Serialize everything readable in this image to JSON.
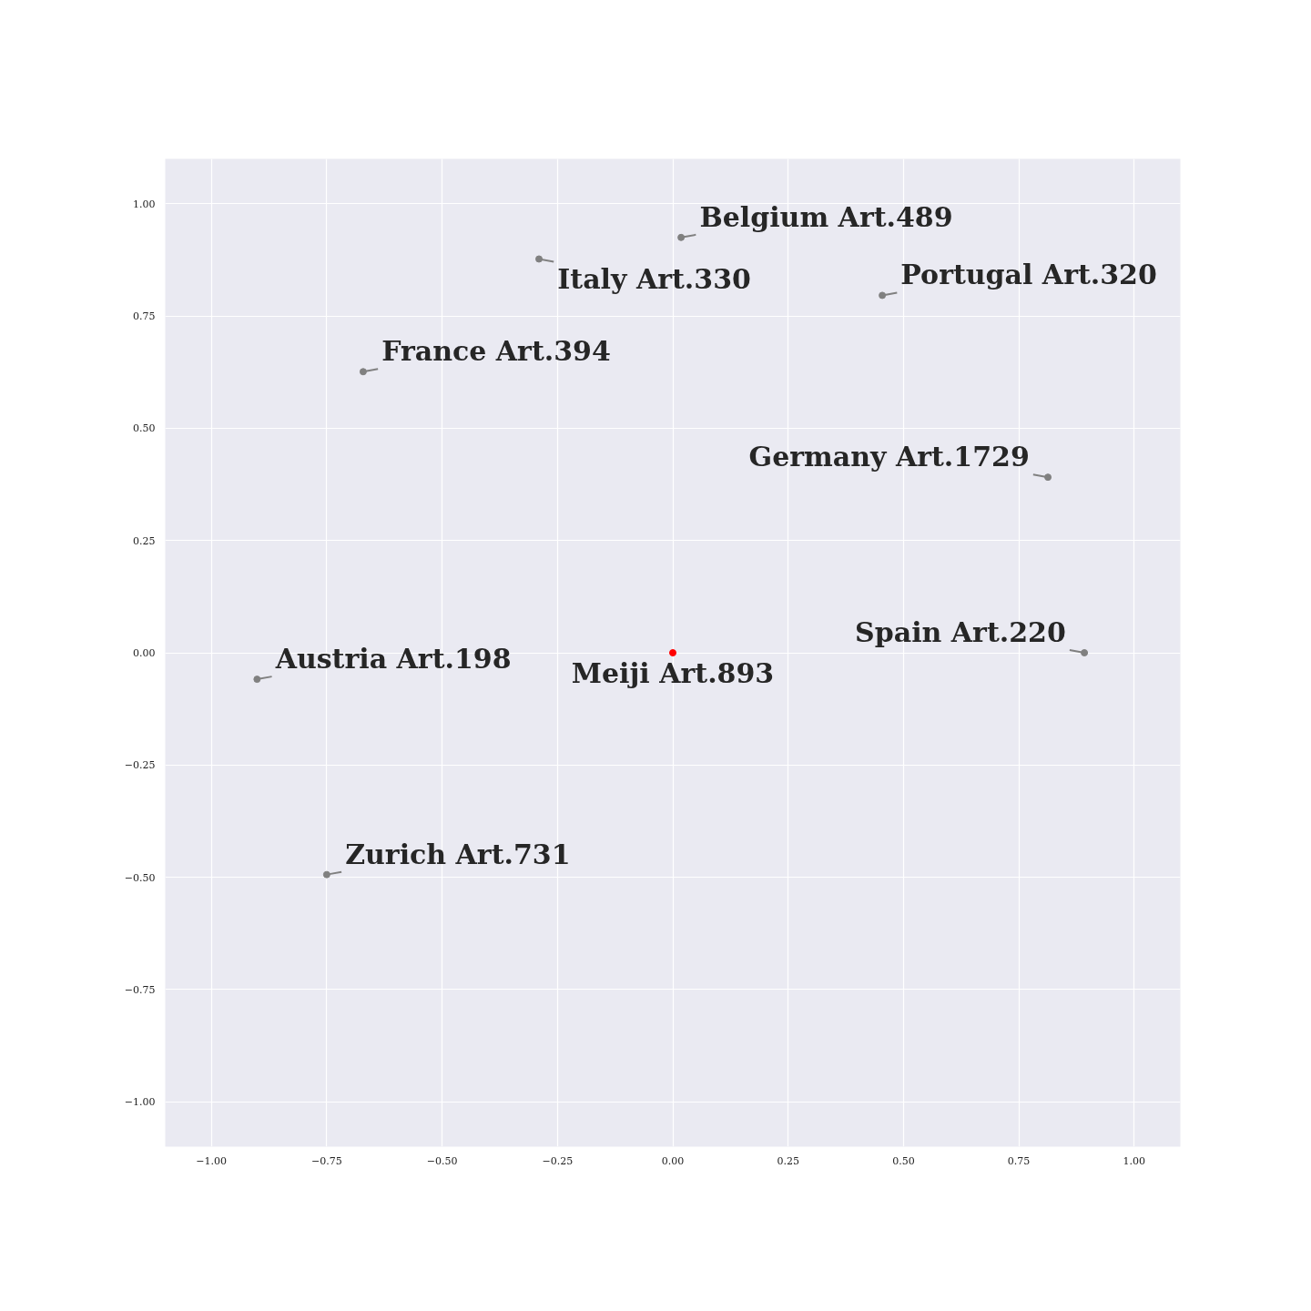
{
  "chart_data": {
    "type": "scatter",
    "grid": true,
    "marker": "circle",
    "xlim": [
      -1.1,
      1.1
    ],
    "ylim": [
      -1.1,
      1.1
    ],
    "xticks": [
      {
        "value": -1,
        "label": "−1.00"
      },
      {
        "value": -0.75,
        "label": "−0.75"
      },
      {
        "value": -0.5,
        "label": "−0.50"
      },
      {
        "value": -0.25,
        "label": "−0.25"
      },
      {
        "value": 0,
        "label": "0.00"
      },
      {
        "value": 0.25,
        "label": "0.25"
      },
      {
        "value": 0.5,
        "label": "0.50"
      },
      {
        "value": 0.75,
        "label": "0.75"
      },
      {
        "value": 1,
        "label": "1.00"
      }
    ],
    "yticks": [
      {
        "value": -1,
        "label": "−1.00"
      },
      {
        "value": -0.75,
        "label": "−0.75"
      },
      {
        "value": -0.5,
        "label": "−0.50"
      },
      {
        "value": -0.25,
        "label": "−0.25"
      },
      {
        "value": 0,
        "label": "0.00"
      },
      {
        "value": 0.25,
        "label": "0.25"
      },
      {
        "value": 0.5,
        "label": "0.50"
      },
      {
        "value": 0.75,
        "label": "0.75"
      },
      {
        "value": 1,
        "label": "1.00"
      }
    ],
    "series": [
      {
        "color": "#808080",
        "x": [
          0.018,
          -0.29,
          0.454,
          -0.671,
          0.813,
          0.892,
          -0.901,
          -0.75
        ],
        "values": [
          0.925,
          0.877,
          0.796,
          0.626,
          0.391,
          0,
          -0.059,
          -0.494
        ]
      },
      {
        "color": "#ff0000",
        "x": [
          0
        ],
        "values": [
          0
        ]
      }
    ],
    "annotations": [
      {
        "text": "Belgium Art.489",
        "x": 0.018,
        "y": 0.925
      },
      {
        "text": "Italy Art.330",
        "x": -0.29,
        "y": 0.877
      },
      {
        "text": "Portugal Art.320",
        "x": 0.454,
        "y": 0.796
      },
      {
        "text": "France Art.394",
        "x": -0.671,
        "y": 0.626
      },
      {
        "text": "Germany Art.1729",
        "x": 0.813,
        "y": 0.391
      },
      {
        "text": "Spain Art.220",
        "x": 0.892,
        "y": 0
      },
      {
        "text": "Austria Art.198",
        "x": -0.901,
        "y": -0.059
      },
      {
        "text": "Zurich Art.731",
        "x": -0.75,
        "y": -0.494
      },
      {
        "text": "Meiji Art.893",
        "x": 0,
        "y": 0
      }
    ]
  }
}
